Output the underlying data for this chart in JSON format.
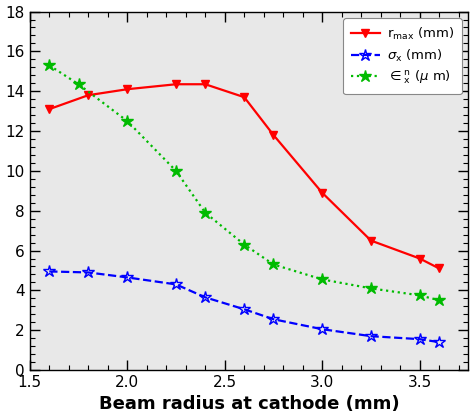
{
  "x_rmax": [
    1.6,
    1.8,
    2.0,
    2.25,
    2.4,
    2.6,
    2.75,
    3.0,
    3.25,
    3.5,
    3.6
  ],
  "y_rmax": [
    13.1,
    13.8,
    14.1,
    14.35,
    14.35,
    13.7,
    11.8,
    8.9,
    6.5,
    5.6,
    5.1
  ],
  "x_sigma": [
    1.6,
    1.8,
    2.0,
    2.25,
    2.4,
    2.6,
    2.75,
    3.0,
    3.25,
    3.5,
    3.6
  ],
  "y_sigma": [
    4.95,
    4.9,
    4.65,
    4.3,
    3.65,
    3.05,
    2.55,
    2.05,
    1.7,
    1.55,
    1.4
  ],
  "x_emit": [
    1.6,
    1.75,
    2.0,
    2.25,
    2.4,
    2.6,
    2.75,
    3.0,
    3.25,
    3.5,
    3.6
  ],
  "y_emit": [
    15.3,
    14.35,
    12.5,
    10.0,
    7.9,
    6.3,
    5.3,
    4.55,
    4.1,
    3.75,
    3.5
  ],
  "xlabel": "Beam radius at cathode (mm)",
  "xlim": [
    1.5,
    3.75
  ],
  "ylim": [
    0,
    18
  ],
  "yticks": [
    0,
    2,
    4,
    6,
    8,
    10,
    12,
    14,
    16,
    18
  ],
  "xticks": [
    1.5,
    2.0,
    2.5,
    3.0,
    3.5
  ],
  "color_rmax": "#ff0000",
  "color_sigma": "#0000ff",
  "color_emit": "#00bb00",
  "bg_color": "#e8e8e8"
}
